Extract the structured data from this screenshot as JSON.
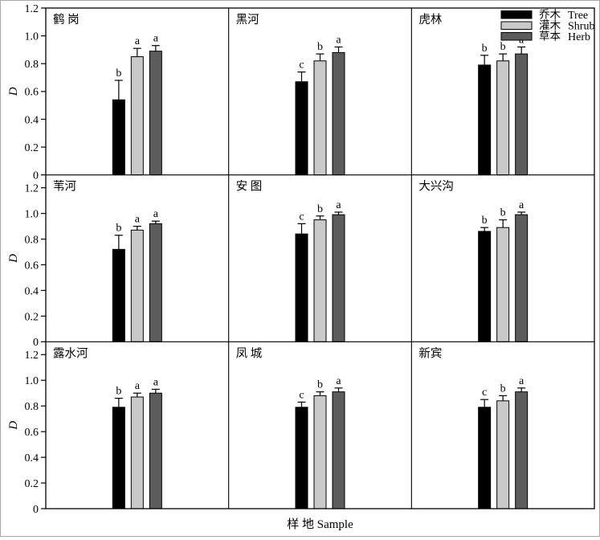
{
  "figure": {
    "background": "#ffffff",
    "frame_color": "#000000",
    "legend_position": "top-right"
  },
  "chart_data": {
    "type": "bar",
    "title": "",
    "xlabel": "样 地 Sample",
    "ylabel": "D",
    "grid": {
      "rows": 3,
      "cols": 3
    },
    "ytick_labels": [
      "0",
      "0.2",
      "0.4",
      "0.6",
      "0.8",
      "1.0",
      "1.2"
    ],
    "ytick_values": [
      0,
      0.2,
      0.4,
      0.6,
      0.8,
      1.0,
      1.2
    ],
    "ylim_rows": [
      [
        0,
        1.2
      ],
      [
        0,
        1.3
      ],
      [
        0,
        1.3
      ]
    ],
    "gridlines": "off",
    "series": [
      {
        "key": "tree",
        "name_cn": "乔木",
        "name_en": "Tree",
        "color": "#000000"
      },
      {
        "key": "shrub",
        "name_cn": "灌木",
        "name_en": "Shrub",
        "color": "#c9c9c9"
      },
      {
        "key": "herb",
        "name_cn": "草本",
        "name_en": "Herb",
        "color": "#5c5c5c"
      }
    ],
    "panels": [
      {
        "site": "鹤 岗",
        "values": [
          0.54,
          0.85,
          0.89
        ],
        "errors": [
          0.14,
          0.06,
          0.04
        ],
        "letters": [
          "b",
          "a",
          "a"
        ]
      },
      {
        "site": "黑河",
        "values": [
          0.67,
          0.82,
          0.88
        ],
        "errors": [
          0.07,
          0.05,
          0.04
        ],
        "letters": [
          "c",
          "b",
          "a"
        ]
      },
      {
        "site": "虎林",
        "values": [
          0.79,
          0.82,
          0.87
        ],
        "errors": [
          0.07,
          0.05,
          0.05
        ],
        "letters": [
          "b",
          "b",
          "a"
        ]
      },
      {
        "site": "苇河",
        "values": [
          0.72,
          0.87,
          0.92
        ],
        "errors": [
          0.11,
          0.03,
          0.02
        ],
        "letters": [
          "b",
          "a",
          "a"
        ]
      },
      {
        "site": "安 图",
        "values": [
          0.84,
          0.95,
          0.99
        ],
        "errors": [
          0.08,
          0.03,
          0.02
        ],
        "letters": [
          "c",
          "b",
          "a"
        ]
      },
      {
        "site": "大兴沟",
        "values": [
          0.86,
          0.89,
          0.99
        ],
        "errors": [
          0.03,
          0.06,
          0.02
        ],
        "letters": [
          "b",
          "b",
          "a"
        ]
      },
      {
        "site": "露水河",
        "values": [
          0.79,
          0.87,
          0.9
        ],
        "errors": [
          0.07,
          0.03,
          0.03
        ],
        "letters": [
          "b",
          "a",
          "a"
        ]
      },
      {
        "site": "凤 城",
        "values": [
          0.79,
          0.88,
          0.91
        ],
        "errors": [
          0.04,
          0.03,
          0.03
        ],
        "letters": [
          "c",
          "b",
          "a"
        ]
      },
      {
        "site": "新宾",
        "values": [
          0.79,
          0.84,
          0.91
        ],
        "errors": [
          0.06,
          0.04,
          0.03
        ],
        "letters": [
          "c",
          "b",
          "a"
        ]
      }
    ]
  }
}
